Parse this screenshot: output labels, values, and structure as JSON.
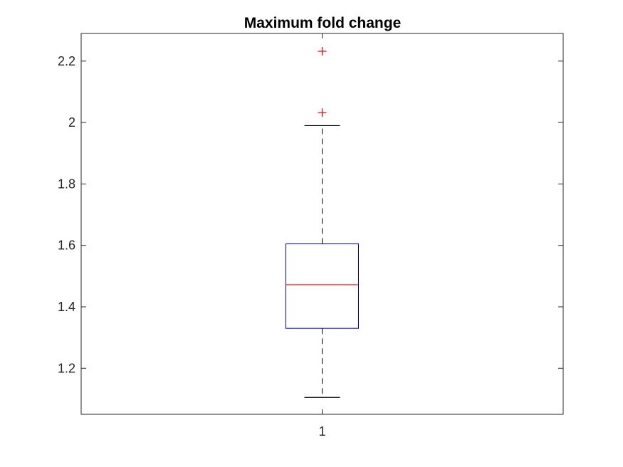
{
  "chart_data": {
    "type": "boxplot",
    "title": "Maximum fold change",
    "xlabel": "",
    "ylabel": "",
    "categories": [
      "1"
    ],
    "ylim": [
      1.05,
      2.29
    ],
    "yticks": [
      1.2,
      1.4,
      1.6,
      1.8,
      2,
      2.2
    ],
    "ytick_labels": [
      "1.2",
      "1.4",
      "1.6",
      "1.8",
      "2",
      "2.2"
    ],
    "grid": false,
    "legend": "none",
    "boxes": [
      {
        "category": "1",
        "whisker_low": 1.105,
        "q1": 1.33,
        "median": 1.472,
        "q3": 1.605,
        "whisker_high": 1.99,
        "outliers": [
          2.032,
          2.232
        ]
      }
    ],
    "colors": {
      "box": "#0000ff",
      "median": "#ff0000",
      "whisker": "#000000",
      "outlier": "#ff0000",
      "axes": "#262626"
    }
  }
}
